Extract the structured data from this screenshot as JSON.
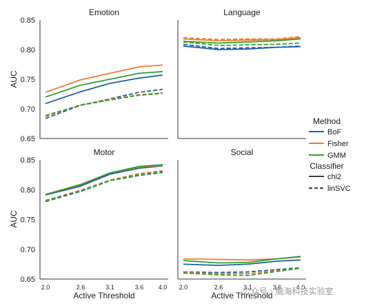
{
  "chart_data": {
    "type": "line",
    "ylabel": "AUC",
    "xlabel": "Active Threshold",
    "x": [
      2.0,
      2.6,
      3.1,
      3.6,
      4.0
    ],
    "x_tick_labels": [
      "2.0",
      "2.6",
      "3.1",
      "3.6",
      "4.0"
    ],
    "legend": {
      "placement": "right",
      "method_title": "Method",
      "methods": [
        {
          "name": "BoF",
          "color": "#1f5fa6"
        },
        {
          "name": "Fisher",
          "color": "#f07b2a"
        },
        {
          "name": "GMM",
          "color": "#2ca02c"
        }
      ],
      "classifier_title": "Classifier",
      "classifiers": [
        {
          "name": "chi2",
          "dash": "solid"
        },
        {
          "name": "linSVC",
          "dash": "dashed"
        }
      ]
    },
    "panels": [
      {
        "title": "Emotion",
        "ylim": [
          0.65,
          0.85
        ],
        "yticks": [
          "0.65",
          "0.70",
          "0.75",
          "0.80",
          "0.85"
        ],
        "show_x_ticks": false,
        "series": [
          {
            "method": "BoF",
            "classifier": "chi2",
            "values": [
              0.709,
              0.729,
              0.743,
              0.752,
              0.757
            ]
          },
          {
            "method": "Fisher",
            "classifier": "chi2",
            "values": [
              0.728,
              0.749,
              0.76,
              0.771,
              0.774
            ]
          },
          {
            "method": "GMM",
            "classifier": "chi2",
            "values": [
              0.72,
              0.74,
              0.75,
              0.76,
              0.763
            ]
          },
          {
            "method": "BoF",
            "classifier": "linSVC",
            "values": [
              0.684,
              0.706,
              0.717,
              0.728,
              0.733
            ]
          },
          {
            "method": "Fisher",
            "classifier": "linSVC",
            "values": [
              0.687,
              0.707,
              0.716,
              0.724,
              0.727
            ]
          },
          {
            "method": "GMM",
            "classifier": "linSVC",
            "values": [
              0.689,
              0.706,
              0.715,
              0.723,
              0.726
            ]
          }
        ]
      },
      {
        "title": "Language",
        "ylim": [
          0.65,
          0.85
        ],
        "yticks": [],
        "show_x_ticks": false,
        "series": [
          {
            "method": "BoF",
            "classifier": "chi2",
            "values": [
              0.806,
              0.8,
              0.801,
              0.804,
              0.805
            ]
          },
          {
            "method": "Fisher",
            "classifier": "chi2",
            "values": [
              0.818,
              0.815,
              0.816,
              0.817,
              0.82
            ]
          },
          {
            "method": "GMM",
            "classifier": "chi2",
            "values": [
              0.814,
              0.811,
              0.813,
              0.815,
              0.818
            ]
          },
          {
            "method": "BoF",
            "classifier": "linSVC",
            "values": [
              0.809,
              0.802,
              0.803,
              0.804,
              0.806
            ]
          },
          {
            "method": "Fisher",
            "classifier": "linSVC",
            "values": [
              0.82,
              0.817,
              0.818,
              0.818,
              0.822
            ]
          },
          {
            "method": "GMM",
            "classifier": "linSVC",
            "values": [
              0.813,
              0.807,
              0.808,
              0.809,
              0.811
            ]
          }
        ]
      },
      {
        "title": "Motor",
        "ylim": [
          0.65,
          0.85
        ],
        "yticks": [
          "0.65",
          "0.70",
          "0.75",
          "0.80",
          "0.85"
        ],
        "show_x_ticks": true,
        "series": [
          {
            "method": "BoF",
            "classifier": "chi2",
            "values": [
              0.791,
              0.806,
              0.826,
              0.836,
              0.84
            ]
          },
          {
            "method": "Fisher",
            "classifier": "chi2",
            "values": [
              0.792,
              0.809,
              0.828,
              0.838,
              0.841
            ]
          },
          {
            "method": "GMM",
            "classifier": "chi2",
            "values": [
              0.792,
              0.808,
              0.828,
              0.839,
              0.842
            ]
          },
          {
            "method": "BoF",
            "classifier": "linSVC",
            "values": [
              0.78,
              0.797,
              0.815,
              0.824,
              0.829
            ]
          },
          {
            "method": "Fisher",
            "classifier": "linSVC",
            "values": [
              0.782,
              0.799,
              0.816,
              0.827,
              0.832
            ]
          },
          {
            "method": "GMM",
            "classifier": "linSVC",
            "values": [
              0.781,
              0.798,
              0.815,
              0.825,
              0.83
            ]
          }
        ]
      },
      {
        "title": "Social",
        "ylim": [
          0.65,
          0.85
        ],
        "yticks": [],
        "show_x_ticks": true,
        "series": [
          {
            "method": "BoF",
            "classifier": "chi2",
            "values": [
              0.675,
              0.673,
              0.675,
              0.68,
              0.682
            ]
          },
          {
            "method": "Fisher",
            "classifier": "chi2",
            "values": [
              0.684,
              0.683,
              0.682,
              0.684,
              0.687
            ]
          },
          {
            "method": "GMM",
            "classifier": "chi2",
            "values": [
              0.681,
              0.677,
              0.678,
              0.684,
              0.688
            ]
          },
          {
            "method": "BoF",
            "classifier": "linSVC",
            "values": [
              0.662,
              0.661,
              0.662,
              0.666,
              0.669
            ]
          },
          {
            "method": "Fisher",
            "classifier": "linSVC",
            "values": [
              0.661,
              0.659,
              0.659,
              0.664,
              0.668
            ]
          },
          {
            "method": "GMM",
            "classifier": "linSVC",
            "values": [
              0.66,
              0.657,
              0.656,
              0.663,
              0.668
            ]
          }
        ]
      }
    ]
  },
  "watermark": "公众号 · 脑海科技实验室"
}
